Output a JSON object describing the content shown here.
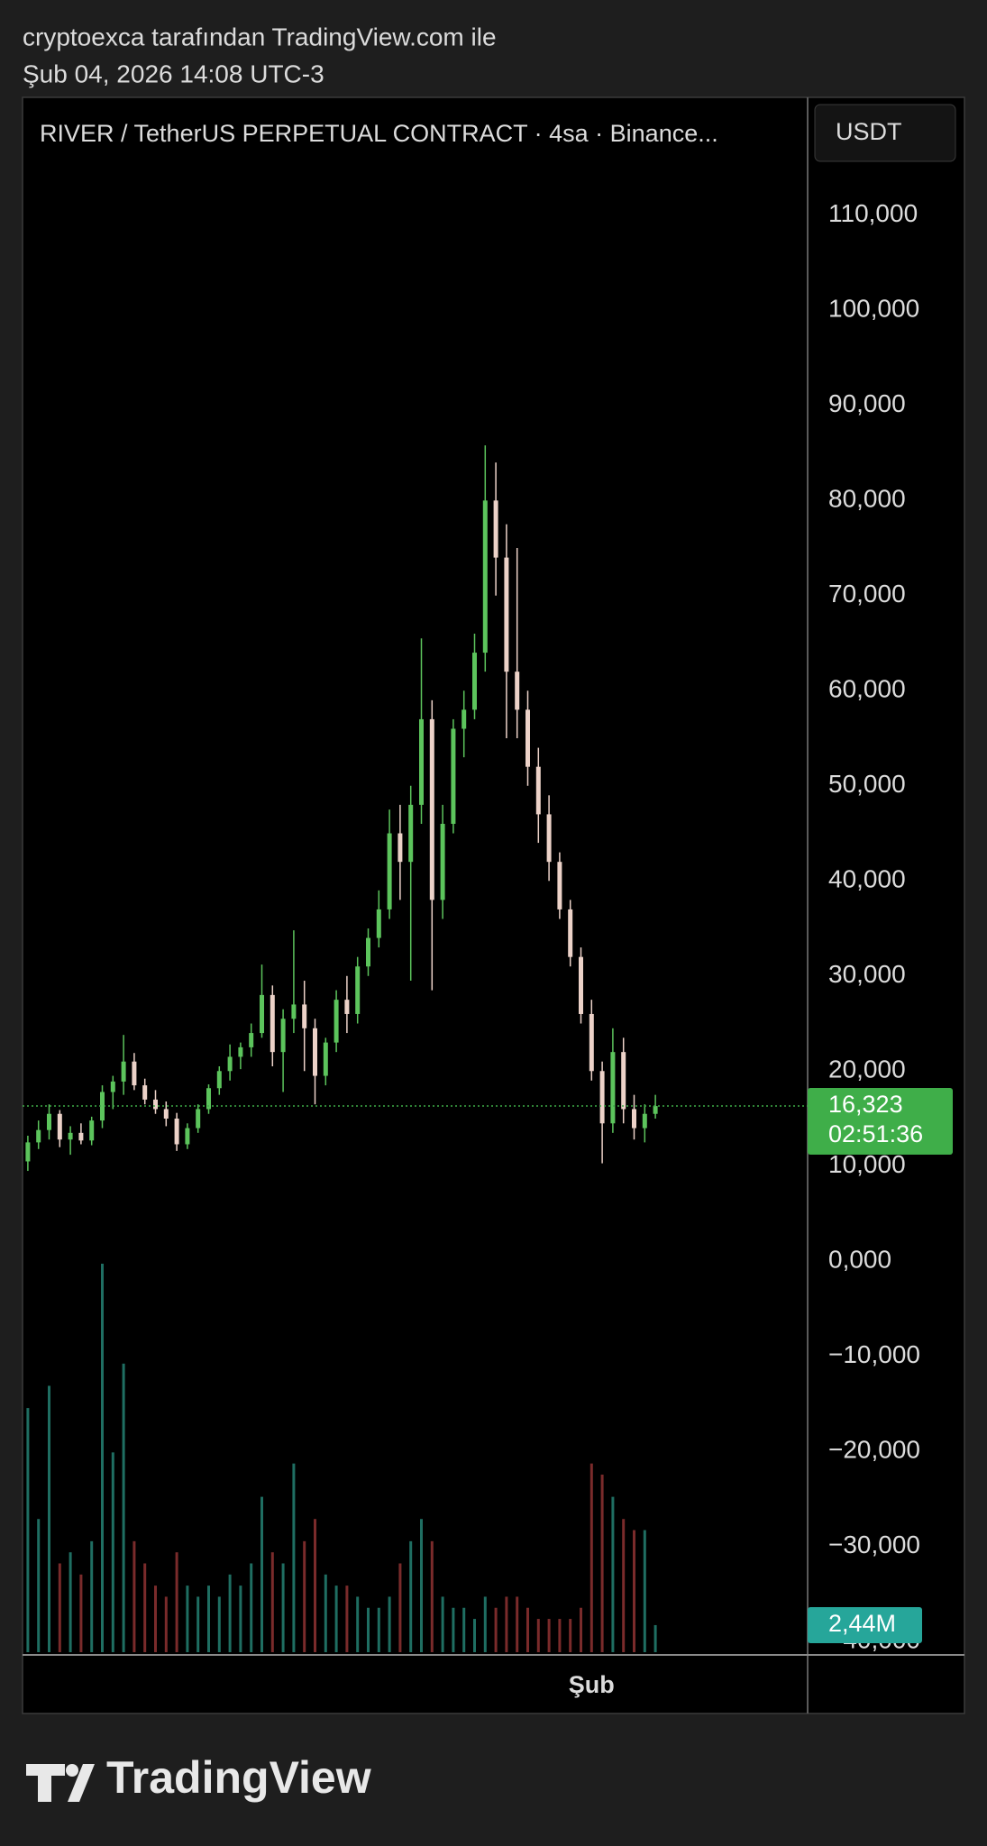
{
  "header": {
    "line1": "cryptoexca tarafından TradingView.com ile",
    "line2": "Şub 04, 2026 14:08 UTC-3"
  },
  "chart_data": {
    "type": "candlestick",
    "title": "RIVER / TetherUS PERPETUAL CONTRACT · 4sa · Binance...",
    "currency": "USDT",
    "categories": [
      null,
      null,
      null,
      null,
      null,
      null,
      null,
      null,
      null,
      null,
      null,
      null,
      null,
      null,
      null,
      null,
      null,
      null,
      null,
      null,
      null,
      null,
      null,
      null,
      null,
      null,
      null,
      null,
      null,
      null,
      null,
      null,
      null,
      null,
      null,
      null,
      null,
      null,
      null,
      null,
      null,
      null,
      null,
      null,
      null,
      null,
      null,
      null,
      null,
      null,
      null,
      null,
      null,
      "Şub",
      null,
      null,
      null,
      null,
      null,
      null
    ],
    "open": [
      10500,
      12500,
      13800,
      15500,
      12800,
      13500,
      12700,
      14800,
      17800,
      18900,
      21000,
      18500,
      17000,
      16000,
      15000,
      12300,
      14000,
      16000,
      18200,
      20000,
      21500,
      22500,
      24000,
      28000,
      22000,
      25500,
      27000,
      24500,
      19500,
      23000,
      27500,
      26000,
      31000,
      34000,
      37000,
      45000,
      42000,
      48000,
      57000,
      38000,
      46000,
      56000,
      58000,
      64000,
      80000,
      74000,
      62000,
      58000,
      52000,
      47000,
      42000,
      37000,
      32000,
      26000,
      20000,
      14500,
      22000,
      16000,
      14000,
      15500
    ],
    "high": [
      13200,
      14800,
      16500,
      15900,
      14200,
      14500,
      15200,
      18500,
      19500,
      23800,
      21900,
      19200,
      18000,
      16800,
      15600,
      14500,
      16500,
      18600,
      20500,
      22800,
      23000,
      25000,
      31200,
      29000,
      26500,
      34800,
      29500,
      25500,
      23500,
      28500,
      30000,
      32000,
      35000,
      39000,
      47500,
      48000,
      50000,
      65500,
      59000,
      48000,
      57000,
      60000,
      66000,
      85800,
      84000,
      77500,
      75000,
      60000,
      54000,
      49000,
      43000,
      38000,
      33000,
      27500,
      21000,
      24500,
      23500,
      17500,
      16500,
      17500
    ],
    "low": [
      9500,
      11800,
      12800,
      12000,
      11200,
      12300,
      12200,
      14000,
      16000,
      17500,
      18000,
      16500,
      15500,
      14200,
      11600,
      11800,
      13500,
      15500,
      17500,
      19000,
      20200,
      21500,
      23500,
      20500,
      17800,
      24000,
      20000,
      16500,
      18500,
      22000,
      24000,
      25000,
      30000,
      33000,
      36000,
      38000,
      29500,
      46000,
      28500,
      36000,
      45000,
      53000,
      57000,
      62000,
      70000,
      55000,
      55000,
      50000,
      44000,
      40000,
      36000,
      31000,
      25000,
      19000,
      10300,
      13500,
      14500,
      12800,
      12500,
      15000
    ],
    "close": [
      12500,
      13800,
      15500,
      12800,
      13500,
      12700,
      14800,
      17800,
      18900,
      21000,
      18500,
      17000,
      16000,
      15000,
      12300,
      14000,
      16000,
      18200,
      20000,
      21500,
      22500,
      24000,
      28000,
      22000,
      25500,
      27000,
      24500,
      19500,
      23000,
      27500,
      26000,
      31000,
      34000,
      37000,
      45000,
      42000,
      48000,
      57000,
      38000,
      46000,
      56000,
      58000,
      64000,
      80000,
      74000,
      62000,
      58000,
      52000,
      47000,
      42000,
      37000,
      32000,
      26000,
      20000,
      14500,
      22000,
      16000,
      14000,
      15500,
      16323
    ],
    "volume": [
      22,
      12,
      24,
      8,
      9,
      7,
      10,
      35,
      18,
      26,
      10,
      8,
      6,
      5,
      9,
      6,
      5,
      6,
      5,
      7,
      6,
      8,
      14,
      9,
      8,
      17,
      10,
      12,
      7,
      6,
      6,
      5,
      4,
      4,
      5,
      8,
      10,
      12,
      10,
      5,
      4,
      4,
      3,
      5,
      4,
      5,
      5,
      4,
      3,
      3,
      3,
      3,
      4,
      17,
      16,
      14,
      12,
      11,
      11,
      2.44
    ],
    "volume_label": "2,44M",
    "price_label": "16,323",
    "countdown": "02:51:36",
    "up_color": "#5cc45c",
    "down_color": "#ecd2c8",
    "volume_up_color": "#1f6e62",
    "volume_down_color": "#7a2b2b",
    "price_box_color": "#3fae49",
    "volume_box_color": "#26a69a",
    "ylim": [
      -41400,
      122400
    ],
    "yticks": [
      {
        "value": 110000,
        "label": "110,000"
      },
      {
        "value": 100000,
        "label": "100,000"
      },
      {
        "value": 90000,
        "label": "90,000"
      },
      {
        "value": 80000,
        "label": "80,000"
      },
      {
        "value": 70000,
        "label": "70,000"
      },
      {
        "value": 60000,
        "label": "60,000"
      },
      {
        "value": 50000,
        "label": "50,000"
      },
      {
        "value": 40000,
        "label": "40,000"
      },
      {
        "value": 30000,
        "label": "30,000"
      },
      {
        "value": 20000,
        "label": "20,000"
      },
      {
        "value": 10000,
        "label": "10,000"
      },
      {
        "value": 0,
        "label": "0,000"
      },
      {
        "value": -10000,
        "label": "−10,000"
      },
      {
        "value": -20000,
        "label": "−20,000"
      },
      {
        "value": -30000,
        "label": "−30,000"
      },
      {
        "value": -40000,
        "label": "−40,000"
      }
    ],
    "grid": false
  },
  "footer": {
    "logo_text": "TradingView"
  }
}
